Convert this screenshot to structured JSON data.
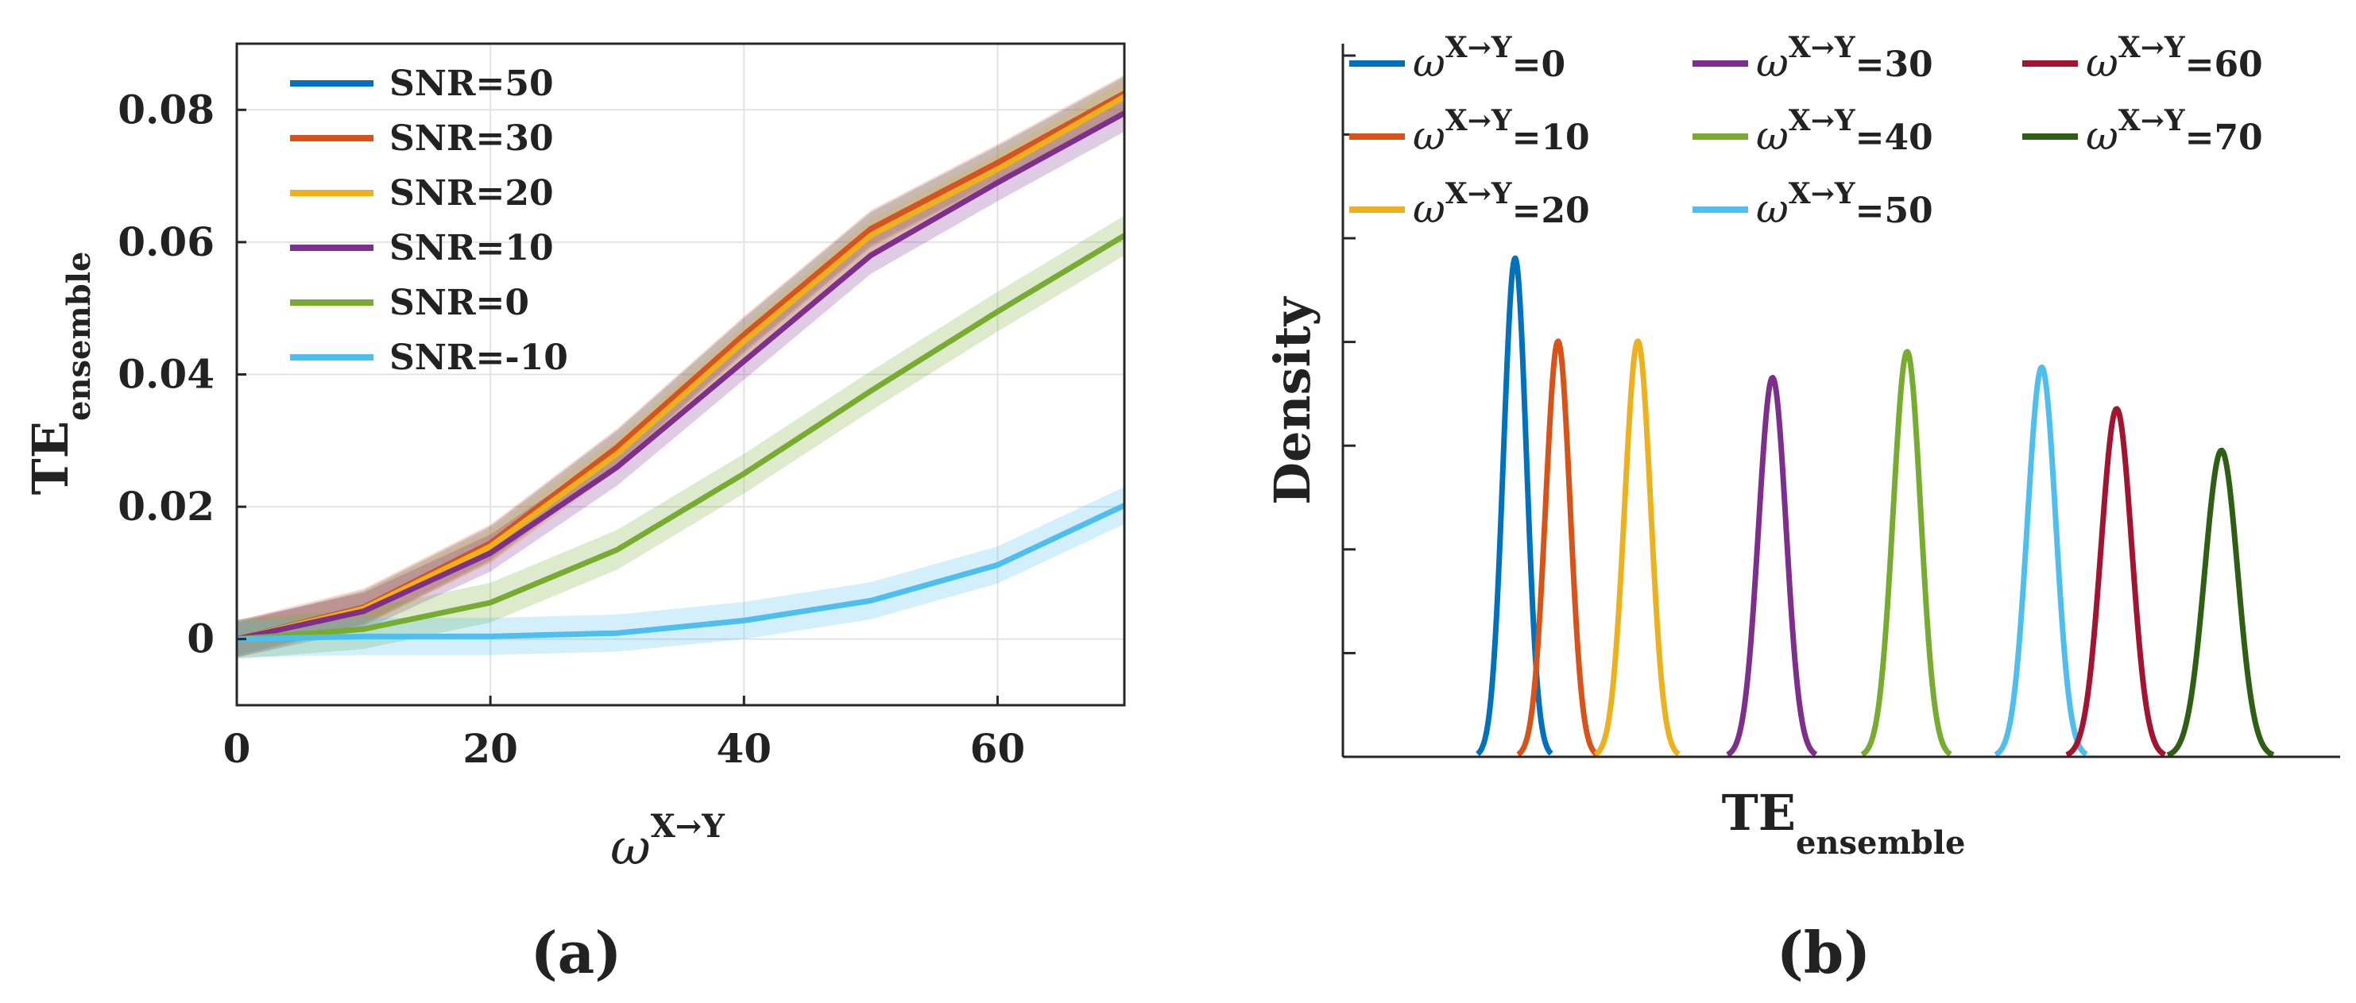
{
  "chart_data": [
    {
      "type": "line",
      "panel_label": "(a)",
      "xlabel": {
        "symbol": "ω",
        "superscript": "X→Y"
      },
      "ylabel": {
        "main": "TE",
        "subscript": "ensemble"
      },
      "x": [
        0,
        10,
        20,
        30,
        40,
        50,
        60,
        70
      ],
      "xlim": [
        0,
        70
      ],
      "ylim": [
        -0.01,
        0.09
      ],
      "xticks": [
        0,
        20,
        40,
        60
      ],
      "xtick_labels": [
        "0",
        "20",
        "40",
        "60"
      ],
      "yticks": [
        0,
        0.02,
        0.04,
        0.06,
        0.08
      ],
      "ytick_labels": [
        "0",
        "0.02",
        "0.04",
        "0.06",
        "0.08"
      ],
      "grid": true,
      "legend_position": "top-left",
      "series": [
        {
          "name": "SNR=50",
          "color": "#0072BD",
          "values": [
            0.0,
            0.0048,
            0.0145,
            0.029,
            0.046,
            0.062,
            0.072,
            0.0825
          ],
          "band": 0.0025
        },
        {
          "name": "SNR=30",
          "color": "#D95319",
          "values": [
            0.0,
            0.0048,
            0.0145,
            0.029,
            0.046,
            0.062,
            0.072,
            0.0825
          ],
          "band": 0.0028
        },
        {
          "name": "SNR=20",
          "color": "#EDB120",
          "values": [
            0.0,
            0.0046,
            0.014,
            0.028,
            0.045,
            0.061,
            0.071,
            0.082
          ],
          "band": 0.0025
        },
        {
          "name": "SNR=10",
          "color": "#7E2F8E",
          "values": [
            0.0,
            0.0042,
            0.013,
            0.026,
            0.042,
            0.058,
            0.069,
            0.0795
          ],
          "band": 0.0028
        },
        {
          "name": "SNR=0",
          "color": "#77AC30",
          "values": [
            0.0,
            0.0015,
            0.0055,
            0.0135,
            0.025,
            0.0375,
            0.0495,
            0.061
          ],
          "band": 0.003
        },
        {
          "name": "SNR=-10",
          "color": "#4DBEEE",
          "values": [
            0.0,
            0.0004,
            0.0004,
            0.0009,
            0.0028,
            0.0058,
            0.0112,
            0.0202
          ],
          "band": 0.0028
        }
      ]
    },
    {
      "type": "density",
      "panel_label": "(b)",
      "xlabel": {
        "main": "TE",
        "subscript": "ensemble"
      },
      "ylabel": "Density",
      "legend_position": "top",
      "legend_symbol": "ω",
      "legend_superscript": "X→Y",
      "series": [
        {
          "name": "=0",
          "color": "#0072BD",
          "peak_x": 0.172,
          "peak_height": 0.96,
          "width": 0.03
        },
        {
          "name": "=10",
          "color": "#D95319",
          "peak_x": 0.215,
          "peak_height": 0.8,
          "width": 0.032
        },
        {
          "name": "=20",
          "color": "#EDB120",
          "peak_x": 0.295,
          "peak_height": 0.8,
          "width": 0.034
        },
        {
          "name": "=30",
          "color": "#7E2F8E",
          "peak_x": 0.43,
          "peak_height": 0.73,
          "width": 0.036
        },
        {
          "name": "=40",
          "color": "#77AC30",
          "peak_x": 0.565,
          "peak_height": 0.78,
          "width": 0.036
        },
        {
          "name": "=50",
          "color": "#4DBEEE",
          "peak_x": 0.7,
          "peak_height": 0.75,
          "width": 0.037
        },
        {
          "name": "=60",
          "color": "#A2142F",
          "peak_x": 0.775,
          "peak_height": 0.67,
          "width": 0.04
        },
        {
          "name": "=70",
          "color": "#2E5F14",
          "peak_x": 0.88,
          "peak_height": 0.59,
          "width": 0.043
        }
      ]
    }
  ]
}
